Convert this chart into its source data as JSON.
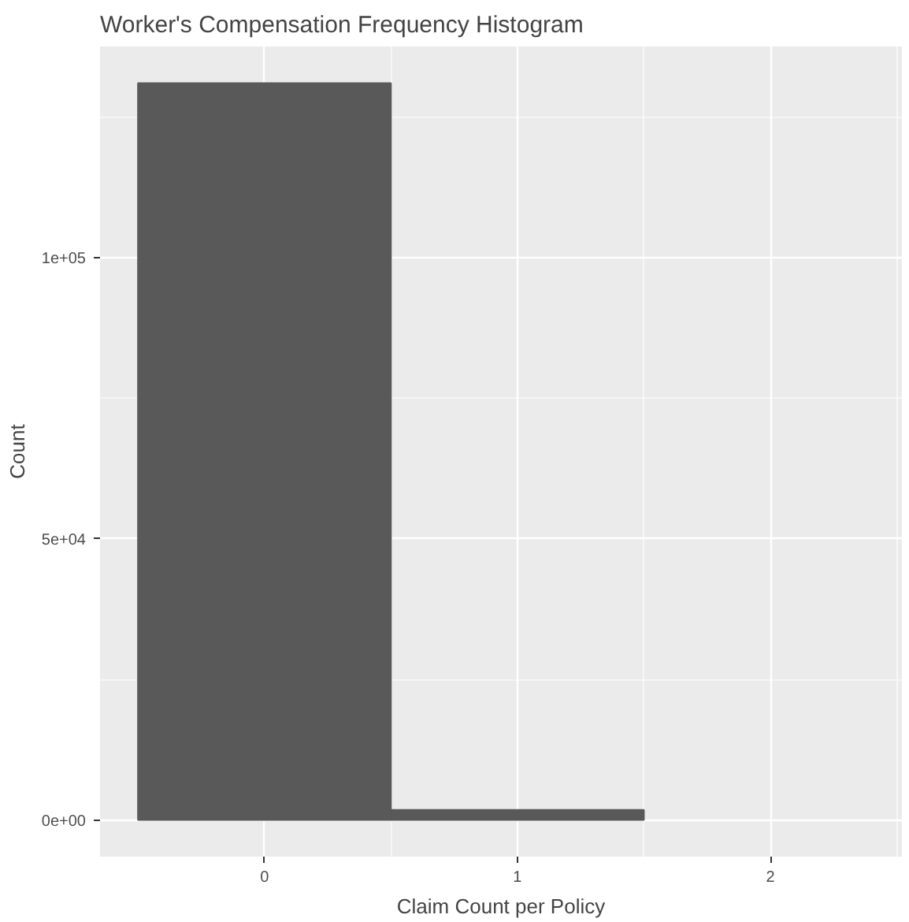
{
  "chart_data": {
    "type": "histogram",
    "title": "Worker's Compensation Frequency Histogram",
    "xlabel": "Claim Count per Policy",
    "ylabel": "Count",
    "bins": [
      -0.5,
      0.5,
      1.5
    ],
    "values": [
      131000,
      1800
    ],
    "color": "#595959",
    "xlim": [
      -0.65,
      2.52
    ],
    "xticks": [
      0,
      1,
      2
    ],
    "ylim": [
      -6500,
      137500
    ],
    "yticks": [
      {
        "value": 0,
        "label": "0e+00"
      },
      {
        "value": 50000,
        "label": "5e+04"
      },
      {
        "value": 100000,
        "label": "1e+05"
      }
    ],
    "grid": true
  }
}
